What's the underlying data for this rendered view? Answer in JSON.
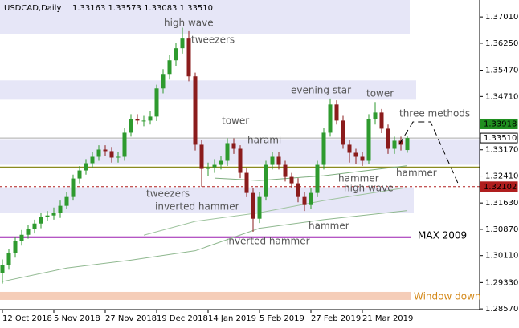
{
  "chart_data": {
    "type": "candlestick",
    "title": "USDCAD,Daily",
    "subtitle": "1.33163 1.33573 1.33083 1.33510",
    "categories": [
      "12 Oct 2018",
      null,
      null,
      null,
      null,
      null,
      null,
      null,
      "5 Nov 2018",
      null,
      null,
      null,
      null,
      null,
      null,
      null,
      "27 Nov 2018",
      null,
      null,
      null,
      null,
      null,
      null,
      null,
      "19 Dec 2018",
      null,
      null,
      null,
      null,
      null,
      null,
      null,
      "14 Jan 2019",
      null,
      null,
      null,
      null,
      null,
      null,
      null,
      "5 Feb 2019",
      null,
      null,
      null,
      null,
      null,
      null,
      null,
      "27 Feb 2019",
      null,
      null,
      null,
      null,
      null,
      null,
      null,
      "21 Mar 2019",
      null,
      null,
      null,
      null,
      null,
      null,
      null
    ],
    "open": [
      1.296,
      1.29828,
      1.30177,
      1.30526,
      1.30712,
      1.30875,
      1.31037,
      1.31223,
      1.3127,
      1.3134,
      1.31549,
      1.31804,
      1.32339,
      1.32572,
      1.32781,
      1.32967,
      1.33176,
      1.3313,
      1.32944,
      1.32967,
      1.33664,
      1.34059,
      1.34013,
      1.34013,
      1.34129,
      1.34943,
      1.35361,
      1.35756,
      1.36105,
      1.36384,
      1.35292,
      1.33316,
      1.32618,
      1.32665,
      1.32734,
      1.32851,
      1.33362,
      1.33199,
      1.32502,
      1.31921,
      1.31177,
      1.31804,
      1.32734,
      1.32967,
      1.32734,
      1.32386,
      1.322,
      1.31804,
      1.31572,
      1.31921,
      1.32734,
      1.33664,
      1.34478,
      1.34013,
      1.33316,
      1.33083,
      1.32967,
      1.32851,
      1.34059,
      1.34245,
      1.3378,
      1.33199,
      1.33432,
      1.33163
    ],
    "high": [
      1.3,
      1.303,
      1.3065,
      1.3085,
      1.31,
      1.3115,
      1.3135,
      1.314,
      1.315,
      1.317,
      1.3195,
      1.3245,
      1.327,
      1.329,
      1.331,
      1.333,
      1.333,
      1.3325,
      1.331,
      1.338,
      1.342,
      1.342,
      1.3415,
      1.343,
      1.3505,
      1.355,
      1.359,
      1.3625,
      1.367,
      1.366,
      1.354,
      1.3345,
      1.328,
      1.329,
      1.33,
      1.335,
      1.335,
      1.333,
      1.3265,
      1.3205,
      1.3195,
      1.3285,
      1.331,
      1.331,
      1.3285,
      1.325,
      1.3235,
      1.3195,
      1.3205,
      1.3285,
      1.338,
      1.3465,
      1.346,
      1.3415,
      1.3345,
      1.332,
      1.331,
      1.342,
      1.3455,
      1.3435,
      1.339,
      1.3355,
      1.3355,
      1.33573
    ],
    "low": [
      1.293,
      1.297,
      1.3005,
      1.304,
      1.306,
      1.3075,
      1.309,
      1.311,
      1.3115,
      1.312,
      1.3145,
      1.317,
      1.322,
      1.3245,
      1.3265,
      1.3285,
      1.33,
      1.328,
      1.328,
      1.3285,
      1.3355,
      1.339,
      1.3385,
      1.339,
      1.34,
      1.348,
      1.352,
      1.356,
      1.3595,
      1.3515,
      1.3315,
      1.321,
      1.324,
      1.325,
      1.326,
      1.327,
      1.3305,
      1.3235,
      1.318,
      1.308,
      1.3105,
      1.317,
      1.326,
      1.326,
      1.3225,
      1.3205,
      1.3165,
      1.314,
      1.3145,
      1.318,
      1.326,
      1.3355,
      1.339,
      1.332,
      1.328,
      1.3275,
      1.327,
      1.3275,
      1.339,
      1.3365,
      1.3305,
      1.3305,
      1.3315,
      1.33083
    ],
    "close": [
      1.29828,
      1.30177,
      1.30526,
      1.30712,
      1.30875,
      1.31037,
      1.31223,
      1.3127,
      1.3134,
      1.31549,
      1.31804,
      1.32339,
      1.32572,
      1.32781,
      1.32967,
      1.33176,
      1.3313,
      1.32944,
      1.32967,
      1.33664,
      1.34059,
      1.34013,
      1.34013,
      1.34129,
      1.34943,
      1.35361,
      1.35756,
      1.36105,
      1.36384,
      1.35292,
      1.33316,
      1.32618,
      1.32665,
      1.32734,
      1.32851,
      1.33362,
      1.33199,
      1.32502,
      1.31921,
      1.31177,
      1.31804,
      1.32734,
      1.32967,
      1.32734,
      1.32386,
      1.322,
      1.31804,
      1.31572,
      1.31921,
      1.32734,
      1.33664,
      1.34478,
      1.34013,
      1.33316,
      1.33083,
      1.32967,
      1.32851,
      1.34059,
      1.34245,
      1.3378,
      1.33199,
      1.33432,
      1.33316,
      1.3351
    ],
    "up_color": "#2e9a2e",
    "down_color": "#8b1c1c",
    "ylim": [
      1.2855,
      1.375
    ],
    "yticks": [
      {
        "value": 1.3701,
        "label": "1.37010"
      },
      {
        "value": 1.3625,
        "label": "1.36250"
      },
      {
        "value": 1.3547,
        "label": "1.35470"
      },
      {
        "value": 1.3471,
        "label": "1.34710"
      },
      {
        "value": 1.3317,
        "label": "1.33170"
      },
      {
        "value": 1.3241,
        "label": "1.32410"
      },
      {
        "value": 1.3163,
        "label": "1.31630"
      },
      {
        "value": 1.3087,
        "label": "1.30870"
      },
      {
        "value": 1.3011,
        "label": "1.30110"
      },
      {
        "value": 1.2933,
        "label": "1.29330"
      },
      {
        "value": 1.2857,
        "label": "1.28570"
      }
    ],
    "zones": [
      {
        "top": 1.375,
        "bottom": 1.36524,
        "color": "#e6e6f7"
      },
      {
        "top": 1.35175,
        "bottom": 1.34617,
        "color": "#e6e6f7"
      },
      {
        "top": 1.33478,
        "bottom": 1.32734,
        "color": "#e6e6f7"
      },
      {
        "top": 1.32083,
        "bottom": 1.3134,
        "color": "#e6e6f7"
      },
      {
        "top": 1.29061,
        "bottom": 1.28829,
        "color": "#f5cdb8"
      }
    ],
    "price_labels": [
      {
        "value": 1.33918,
        "color": "#1f8f1f",
        "dashed": true,
        "text_color": "#000000"
      },
      {
        "value": 1.3351,
        "label": "1.33510",
        "color": "#aaaaaa",
        "dashed": false,
        "text_color": "#000000"
      },
      {
        "value": 1.32102,
        "color": "#b01e1e",
        "dashed": true,
        "text_color": "#ffffff"
      }
    ],
    "lines": [
      {
        "value": 1.32665,
        "color": "#8a8a20"
      },
      {
        "value": 1.30642,
        "color": "#9b1fb0",
        "name": "MAX 2009"
      }
    ],
    "moving_averages": [
      {
        "color": "#8fb88f",
        "x": [
          0,
          10,
          20,
          30,
          40,
          50,
          63
        ],
        "values": [
          1.2936,
          1.2975,
          1.2998,
          1.3025,
          1.309,
          1.3115,
          1.3141
        ]
      },
      {
        "color": "#9fc49f",
        "x": [
          22,
          30,
          40,
          50,
          63
        ],
        "values": [
          1.307,
          1.311,
          1.3135,
          1.317,
          1.3208
        ]
      },
      {
        "color": "#7fae7f",
        "x": [
          33,
          40,
          50,
          63
        ],
        "values": [
          1.3235,
          1.3228,
          1.3242,
          1.3271
        ]
      }
    ],
    "annotations": [
      "high wave",
      "tweezers",
      "evening star",
      "tower",
      "three methods",
      "tower",
      "harami",
      "hammer",
      "hammer",
      "high wave",
      "tweezers",
      "inverted hammer",
      "hammer",
      "inverted hammer",
      "Window down"
    ]
  }
}
